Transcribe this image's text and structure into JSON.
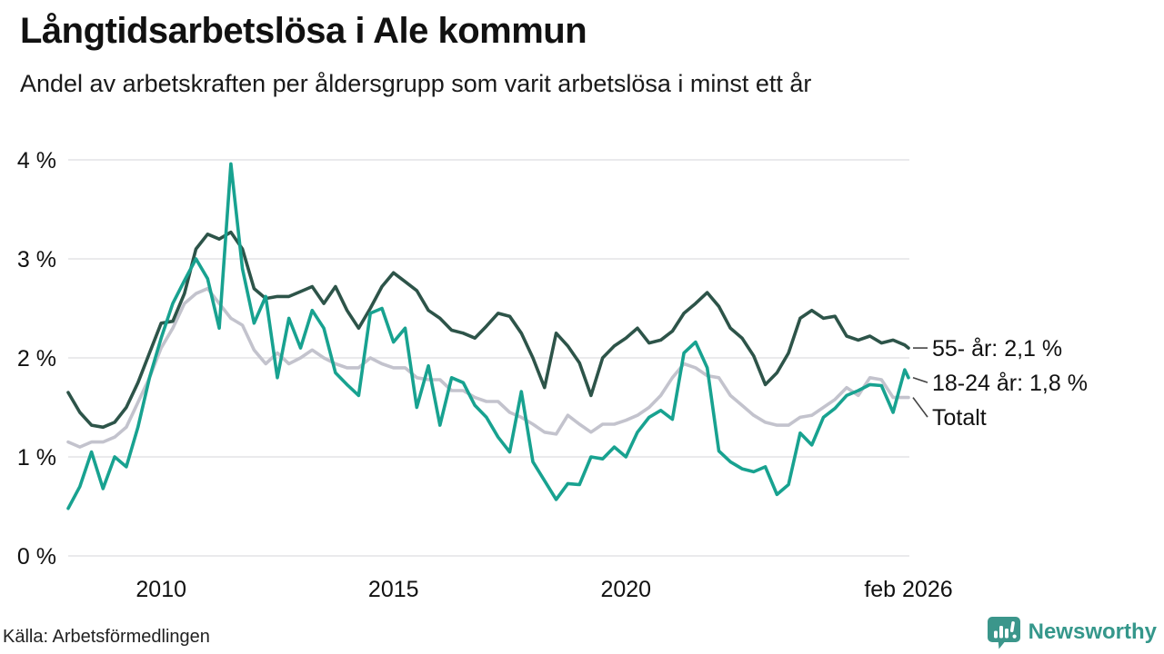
{
  "header": {
    "title": "Långtidsarbetslösa i Ale kommun",
    "subtitle": "Andel av arbetskraften per åldersgrupp som varit arbetslösa i minst ett år"
  },
  "footer": {
    "source": "Källa: Arbetsförmedlingen",
    "brand": "Newsworthy",
    "brand_color": "#35978b",
    "brand_icon": "newsworthy-speech-bubble-bar-chart-icon",
    "brand_icon_color": "#3b968b"
  },
  "colors": {
    "grid": "#e3e3e6",
    "axis_text": "#111111",
    "annotation_text": "#111111",
    "connector": "#444444"
  },
  "chart_data": {
    "type": "line",
    "title": "Långtidsarbetslösa i Ale kommun",
    "xlabel": "",
    "ylabel": "",
    "xlim": [
      2008,
      2026.1
    ],
    "ylim": [
      0,
      4
    ],
    "grid": "horizontal",
    "legend_position": "right-end-annotations",
    "yticks": [
      {
        "value": 0,
        "label": "0 %"
      },
      {
        "value": 1,
        "label": "1 %"
      },
      {
        "value": 2,
        "label": "2 %"
      },
      {
        "value": 3,
        "label": "3 %"
      },
      {
        "value": 4,
        "label": "4 %"
      }
    ],
    "xticks": [
      {
        "value": 2010,
        "label": "2010"
      },
      {
        "value": 2015,
        "label": "2015"
      },
      {
        "value": 2020,
        "label": "2020"
      },
      {
        "value": 2026.08,
        "label": "feb 2026"
      }
    ],
    "x": [
      2008,
      2008.25,
      2008.5,
      2008.75,
      2009,
      2009.25,
      2009.5,
      2009.75,
      2010,
      2010.25,
      2010.5,
      2010.75,
      2011,
      2011.25,
      2011.5,
      2011.75,
      2012,
      2012.25,
      2012.5,
      2012.75,
      2013,
      2013.25,
      2013.5,
      2013.75,
      2014,
      2014.25,
      2014.5,
      2014.75,
      2015,
      2015.25,
      2015.5,
      2015.75,
      2016,
      2016.25,
      2016.5,
      2016.75,
      2017,
      2017.25,
      2017.5,
      2017.75,
      2018,
      2018.25,
      2018.5,
      2018.75,
      2019,
      2019.25,
      2019.5,
      2019.75,
      2020,
      2020.25,
      2020.5,
      2020.75,
      2021,
      2021.25,
      2021.5,
      2021.75,
      2022,
      2022.25,
      2022.5,
      2022.75,
      2023,
      2023.25,
      2023.5,
      2023.75,
      2024,
      2024.25,
      2024.5,
      2024.75,
      2025,
      2025.25,
      2025.5,
      2025.75,
      2026,
      2026.08
    ],
    "series": [
      {
        "name": "55- år",
        "end_label": "55- år: 2,1 %",
        "end_value_text": "2,1 %",
        "color": "#2D5449",
        "values": [
          1.65,
          1.45,
          1.32,
          1.3,
          1.35,
          1.5,
          1.75,
          2.05,
          2.35,
          2.37,
          2.65,
          3.1,
          3.25,
          3.2,
          3.27,
          3.1,
          2.7,
          2.6,
          2.62,
          2.62,
          2.67,
          2.72,
          2.55,
          2.72,
          2.48,
          2.3,
          2.5,
          2.72,
          2.86,
          2.77,
          2.68,
          2.48,
          2.4,
          2.28,
          2.25,
          2.2,
          2.32,
          2.45,
          2.42,
          2.25,
          2.0,
          1.7,
          2.25,
          2.12,
          1.95,
          1.62,
          2.0,
          2.12,
          2.2,
          2.3,
          2.15,
          2.18,
          2.27,
          2.45,
          2.55,
          2.66,
          2.52,
          2.3,
          2.2,
          2.02,
          1.73,
          1.85,
          2.05,
          2.4,
          2.48,
          2.4,
          2.42,
          2.22,
          2.18,
          2.22,
          2.15,
          2.18,
          2.13,
          2.1
        ]
      },
      {
        "name": "18-24 år",
        "end_label": "18-24 år: 1,8 %",
        "end_value_text": "1,8 %",
        "color": "#18A290",
        "values": [
          0.48,
          0.7,
          1.05,
          0.68,
          1.0,
          0.9,
          1.3,
          1.8,
          2.2,
          2.55,
          2.78,
          3.0,
          2.8,
          2.3,
          3.96,
          2.9,
          2.35,
          2.62,
          1.8,
          2.4,
          2.1,
          2.48,
          2.3,
          1.85,
          1.73,
          1.62,
          2.45,
          2.5,
          2.16,
          2.3,
          1.5,
          1.92,
          1.32,
          1.8,
          1.75,
          1.52,
          1.4,
          1.2,
          1.05,
          1.66,
          0.95,
          0.76,
          0.57,
          0.73,
          0.72,
          1.0,
          0.98,
          1.1,
          1.0,
          1.25,
          1.4,
          1.47,
          1.38,
          2.05,
          2.16,
          1.9,
          1.06,
          0.95,
          0.88,
          0.85,
          0.9,
          0.62,
          0.72,
          1.24,
          1.12,
          1.4,
          1.49,
          1.62,
          1.67,
          1.73,
          1.72,
          1.45,
          1.88,
          1.8
        ]
      },
      {
        "name": "Totalt",
        "end_label": "Totalt",
        "end_value_text": "",
        "color": "#C3C3CD",
        "values": [
          1.15,
          1.1,
          1.15,
          1.15,
          1.2,
          1.3,
          1.55,
          1.8,
          2.1,
          2.3,
          2.55,
          2.65,
          2.7,
          2.55,
          2.4,
          2.33,
          2.08,
          1.94,
          2.05,
          1.94,
          2.0,
          2.08,
          2.0,
          1.94,
          1.9,
          1.9,
          2.0,
          1.94,
          1.9,
          1.9,
          1.8,
          1.78,
          1.78,
          1.67,
          1.67,
          1.6,
          1.56,
          1.56,
          1.45,
          1.4,
          1.33,
          1.25,
          1.23,
          1.42,
          1.33,
          1.25,
          1.33,
          1.33,
          1.37,
          1.42,
          1.5,
          1.62,
          1.8,
          1.94,
          1.9,
          1.82,
          1.8,
          1.62,
          1.52,
          1.42,
          1.35,
          1.32,
          1.32,
          1.4,
          1.42,
          1.5,
          1.58,
          1.7,
          1.62,
          1.8,
          1.78,
          1.6,
          1.6,
          1.6
        ]
      }
    ]
  }
}
